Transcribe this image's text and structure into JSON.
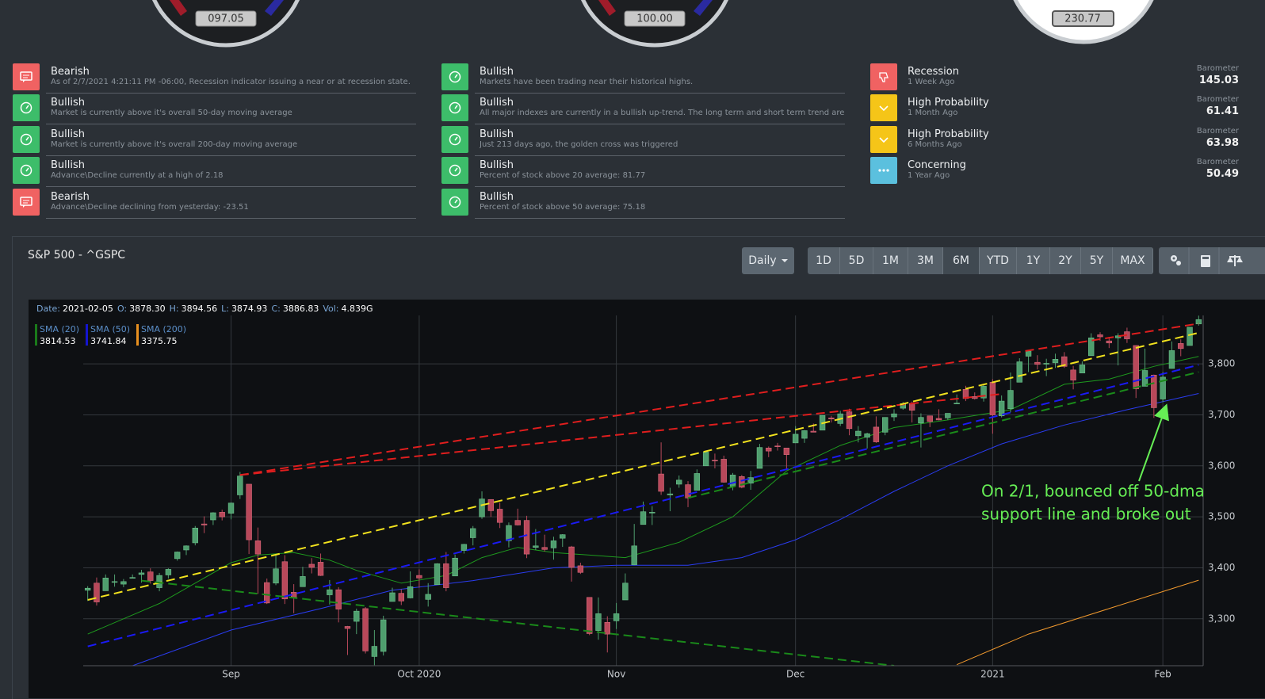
{
  "gauges": [
    {
      "value": "097.05"
    },
    {
      "value": "100.00"
    },
    {
      "value": "230.77"
    }
  ],
  "signal_columns": [
    [
      {
        "kind": "bearish",
        "title": "Bearish",
        "detail": "As of 2/7/2021 4:21:11 PM -06:00, Recession indicator issuing a near or at recession state."
      },
      {
        "kind": "bullish",
        "title": "Bullish",
        "detail": "Market is currently above it's overall 50-day moving average"
      },
      {
        "kind": "bullish",
        "title": "Bullish",
        "detail": "Market is currently above it's overall 200-day moving average"
      },
      {
        "kind": "bullish",
        "title": "Bullish",
        "detail": "Advance\\Decline currently at a high of 2.18"
      },
      {
        "kind": "bearish",
        "title": "Bearish",
        "detail": "Advance\\Decline declining from yesterday: -23.51"
      }
    ],
    [
      {
        "kind": "bullish",
        "title": "Bullish",
        "detail": "Markets have been trading near their historical highs."
      },
      {
        "kind": "bullish",
        "title": "Bullish",
        "detail": "All major indexes are currently in a bullish up-trend. The long term and short term trend are b..."
      },
      {
        "kind": "bullish",
        "title": "Bullish",
        "detail": "Just 213 days ago, the golden cross was triggered"
      },
      {
        "kind": "bullish",
        "title": "Bullish",
        "detail": "Percent of stock above 20 average: 81.77"
      },
      {
        "kind": "bullish",
        "title": "Bullish",
        "detail": "Percent of stock above 50 average: 75.18"
      }
    ]
  ],
  "barometers": {
    "label": "Barometer",
    "items": [
      {
        "kind": "recession",
        "title": "Recession",
        "detail": "1 Week Ago",
        "value": 145.03
      },
      {
        "kind": "high",
        "title": "High Probability",
        "detail": "1 Month Ago",
        "value": 61.41
      },
      {
        "kind": "high",
        "title": "High Probability",
        "detail": "6 Months Ago",
        "value": 63.98
      },
      {
        "kind": "concerning",
        "title": "Concerning",
        "detail": "1 Year Ago",
        "value": 50.49
      }
    ]
  },
  "panel": {
    "title": "S&P 500 - ^GSPC",
    "interval": "Daily",
    "ranges": [
      "1D",
      "5D",
      "1M",
      "3M",
      "6M",
      "YTD",
      "1Y",
      "2Y",
      "5Y",
      "MAX"
    ],
    "active_range": "6M"
  },
  "chart_data": {
    "type": "candlestick",
    "header": {
      "fields": [
        {
          "label": "Date:",
          "value": "2021-02-05"
        },
        {
          "label": "O:",
          "value": "3878.30"
        },
        {
          "label": "H:",
          "value": "3894.56"
        },
        {
          "label": "L:",
          "value": "3874.93"
        },
        {
          "label": "C:",
          "value": "3886.83"
        },
        {
          "label": "Vol:",
          "value": "4.839G"
        }
      ]
    },
    "up_color": "#4f9e6e",
    "down_color": "#b8485a",
    "candles": [
      [
        3356,
        3364,
        3335,
        3360
      ],
      [
        3370,
        3381,
        3326,
        3333
      ],
      [
        3355,
        3387,
        3355,
        3380
      ],
      [
        3373,
        3387,
        3363,
        3373
      ],
      [
        3368,
        3378,
        3362,
        3373
      ],
      [
        3380,
        3387,
        3379,
        3381
      ],
      [
        3387,
        3396,
        3371,
        3390
      ],
      [
        3392,
        3399,
        3369,
        3375
      ],
      [
        3361,
        3390,
        3354,
        3385
      ],
      [
        3386,
        3399,
        3379,
        3397
      ],
      [
        3418,
        3432,
        3414,
        3431
      ],
      [
        3435,
        3444,
        3425,
        3443
      ],
      [
        3449,
        3482,
        3444,
        3478
      ],
      [
        3486,
        3501,
        3468,
        3484
      ],
      [
        3494,
        3509,
        3484,
        3508
      ],
      [
        3509,
        3514,
        3493,
        3500
      ],
      [
        3507,
        3528,
        3495,
        3527
      ],
      [
        3543,
        3588,
        3535,
        3580
      ],
      [
        3564,
        3564,
        3427,
        3455
      ],
      [
        3453,
        3479,
        3349,
        3427
      ],
      [
        3371,
        3379,
        3329,
        3331
      ],
      [
        3370,
        3425,
        3366,
        3398
      ],
      [
        3412,
        3425,
        3329,
        3339
      ],
      [
        3352,
        3368,
        3311,
        3341
      ],
      [
        3363,
        3402,
        3363,
        3383
      ],
      [
        3407,
        3419,
        3389,
        3401
      ],
      [
        3411,
        3428,
        3384,
        3385
      ],
      [
        3347,
        3376,
        3328,
        3357
      ],
      [
        3357,
        3362,
        3293,
        3319
      ],
      [
        3285,
        3286,
        3229,
        3281
      ],
      [
        3295,
        3320,
        3270,
        3315
      ],
      [
        3320,
        3323,
        3232,
        3237
      ],
      [
        3226,
        3278,
        3209,
        3246
      ],
      [
        3236,
        3306,
        3228,
        3298
      ],
      [
        3334,
        3361,
        3334,
        3351
      ],
      [
        3350,
        3358,
        3327,
        3335
      ],
      [
        3341,
        3393,
        3340,
        3363
      ],
      [
        3385,
        3397,
        3361,
        3380
      ],
      [
        3338,
        3370,
        3324,
        3348
      ],
      [
        3367,
        3409,
        3367,
        3408
      ],
      [
        3408,
        3431,
        3354,
        3361
      ],
      [
        3384,
        3426,
        3384,
        3419
      ],
      [
        3434,
        3447,
        3428,
        3446
      ],
      [
        3459,
        3482,
        3444,
        3477
      ],
      [
        3500,
        3550,
        3496,
        3535
      ],
      [
        3534,
        3534,
        3500,
        3512
      ],
      [
        3515,
        3528,
        3478,
        3489
      ],
      [
        3453,
        3489,
        3440,
        3483
      ],
      [
        3493,
        3516,
        3483,
        3484
      ],
      [
        3493,
        3502,
        3419,
        3427
      ],
      [
        3440,
        3476,
        3435,
        3443
      ],
      [
        3440,
        3465,
        3432,
        3436
      ],
      [
        3439,
        3461,
        3416,
        3453
      ],
      [
        3458,
        3466,
        3441,
        3465
      ],
      [
        3441,
        3443,
        3373,
        3401
      ],
      [
        3404,
        3410,
        3388,
        3391
      ],
      [
        3342,
        3342,
        3268,
        3271
      ],
      [
        3277,
        3342,
        3259,
        3310
      ],
      [
        3293,
        3305,
        3234,
        3270
      ],
      [
        3296,
        3331,
        3280,
        3310
      ],
      [
        3337,
        3389,
        3337,
        3370
      ],
      [
        3406,
        3486,
        3405,
        3443
      ],
      [
        3485,
        3530,
        3485,
        3510
      ],
      [
        3508,
        3521,
        3484,
        3509
      ],
      [
        3584,
        3646,
        3543,
        3550
      ],
      [
        3543,
        3557,
        3511,
        3545
      ],
      [
        3564,
        3581,
        3557,
        3572
      ],
      [
        3563,
        3570,
        3519,
        3537
      ],
      [
        3552,
        3593,
        3552,
        3585
      ],
      [
        3600,
        3629,
        3600,
        3627
      ],
      [
        3611,
        3624,
        3595,
        3610
      ],
      [
        3613,
        3620,
        3567,
        3568
      ],
      [
        3560,
        3586,
        3552,
        3582
      ],
      [
        3579,
        3582,
        3556,
        3558
      ],
      [
        3566,
        3590,
        3553,
        3577
      ],
      [
        3595,
        3643,
        3595,
        3636
      ],
      [
        3635,
        3638,
        3617,
        3629
      ],
      [
        3639,
        3645,
        3630,
        3638
      ],
      [
        3635,
        3635,
        3594,
        3622
      ],
      [
        3645,
        3678,
        3645,
        3662
      ],
      [
        3654,
        3670,
        3645,
        3669
      ],
      [
        3668,
        3683,
        3666,
        3666
      ],
      [
        3670,
        3699,
        3670,
        3699
      ],
      [
        3694,
        3698,
        3685,
        3692
      ],
      [
        3683,
        3708,
        3678,
        3702
      ],
      [
        3706,
        3712,
        3660,
        3673
      ],
      [
        3659,
        3678,
        3646,
        3668
      ],
      [
        3656,
        3665,
        3634,
        3663
      ],
      [
        3676,
        3697,
        3645,
        3647
      ],
      [
        3666,
        3695,
        3660,
        3695
      ],
      [
        3696,
        3711,
        3688,
        3702
      ],
      [
        3713,
        3725,
        3710,
        3722
      ],
      [
        3722,
        3726,
        3685,
        3709
      ],
      [
        3684,
        3703,
        3636,
        3695
      ],
      [
        3698,
        3698,
        3676,
        3687
      ],
      [
        3693,
        3711,
        3689,
        3690
      ],
      [
        3694,
        3703,
        3690,
        3703
      ],
      [
        3723,
        3740,
        3723,
        3723
      ],
      [
        3750,
        3757,
        3727,
        3732
      ],
      [
        3736,
        3744,
        3730,
        3732
      ],
      [
        3733,
        3760,
        3726,
        3756
      ],
      [
        3764,
        3770,
        3663,
        3700
      ],
      [
        3698,
        3738,
        3695,
        3727
      ],
      [
        3712,
        3783,
        3705,
        3748
      ],
      [
        3764,
        3811,
        3764,
        3804
      ],
      [
        3815,
        3826,
        3784,
        3825
      ],
      [
        3803,
        3817,
        3789,
        3799
      ],
      [
        3801,
        3810,
        3776,
        3801
      ],
      [
        3802,
        3820,
        3792,
        3809
      ],
      [
        3814,
        3823,
        3792,
        3795
      ],
      [
        3788,
        3796,
        3750,
        3768
      ],
      [
        3782,
        3805,
        3782,
        3798
      ],
      [
        3816,
        3860,
        3816,
        3851
      ],
      [
        3857,
        3862,
        3845,
        3853
      ],
      [
        3845,
        3853,
        3831,
        3841
      ],
      [
        3851,
        3860,
        3797,
        3855
      ],
      [
        3863,
        3871,
        3841,
        3849
      ],
      [
        3836,
        3836,
        3733,
        3751
      ],
      [
        3756,
        3830,
        3756,
        3787
      ],
      [
        3778,
        3779,
        3694,
        3714
      ],
      [
        3731,
        3784,
        3725,
        3774
      ],
      [
        3791,
        3844,
        3791,
        3826
      ],
      [
        3840,
        3848,
        3815,
        3830
      ],
      [
        3836,
        3872,
        3836,
        3872
      ],
      [
        3878.3,
        3894.56,
        3874.93,
        3886.83
      ]
    ],
    "xlim": [
      -0.5,
      124.5
    ],
    "xticks": [
      {
        "value": 16,
        "label": "Sep"
      },
      {
        "value": 37,
        "label": "Oct 2020"
      },
      {
        "value": 59,
        "label": "Nov"
      },
      {
        "value": 79,
        "label": "Dec"
      },
      {
        "value": 101,
        "label": "2021"
      },
      {
        "value": 120,
        "label": "Feb"
      }
    ],
    "ylim": [
      3208,
      3895
    ],
    "yticks": [
      {
        "value": 3300,
        "label": "3,300"
      },
      {
        "value": 3400,
        "label": "3,400"
      },
      {
        "value": 3500,
        "label": "3,500"
      },
      {
        "value": 3600,
        "label": "3,600"
      },
      {
        "value": 3700,
        "label": "3,700"
      },
      {
        "value": 3800,
        "label": "3,800"
      }
    ],
    "grid": true,
    "lines": [
      {
        "name": "SMA (20)",
        "color": "#1e9a1e",
        "legend_color": "#1a7a1a",
        "x": [
          0,
          8,
          16,
          19,
          23,
          27,
          30,
          35,
          40,
          44,
          48,
          52,
          56,
          60,
          66,
          72,
          78,
          84,
          90,
          96,
          103,
          109,
          114,
          119,
          124
        ],
        "values": [
          3270,
          3330,
          3410,
          3425,
          3430,
          3415,
          3395,
          3370,
          3385,
          3420,
          3440,
          3430,
          3425,
          3420,
          3450,
          3500,
          3590,
          3640,
          3675,
          3690,
          3710,
          3760,
          3770,
          3795,
          3814.53
        ]
      },
      {
        "name": "SMA (50)",
        "color": "#2a3cf0",
        "legend_color": "#1515d0",
        "x": [
          5,
          16,
          26,
          34,
          43,
          52,
          59,
          67,
          73,
          79,
          84,
          90,
          96,
          102,
          109,
          116,
          124
        ],
        "values": [
          3208,
          3278,
          3320,
          3356,
          3375,
          3400,
          3405,
          3405,
          3420,
          3455,
          3495,
          3550,
          3600,
          3643,
          3680,
          3710,
          3741.84
        ]
      },
      {
        "name": "SMA (200)",
        "color": "#f29a2e",
        "legend_color": "#e8901f",
        "x": [
          97,
          105,
          114,
          124
        ],
        "values": [
          3210,
          3270,
          3320,
          3375.75
        ]
      }
    ],
    "trendlines": [
      {
        "color": "#e01e1e",
        "x": [
          17,
          124
        ],
        "values": [
          3582,
          3879
        ]
      },
      {
        "color": "#e01e1e",
        "x": [
          17,
          102
        ],
        "values": [
          3582,
          3741
        ]
      },
      {
        "color": "#f2e21e",
        "x": [
          0,
          124
        ],
        "values": [
          3337,
          3861
        ]
      },
      {
        "color": "#1a1af5",
        "x": [
          0,
          124
        ],
        "values": [
          3246,
          3798
        ]
      },
      {
        "color": "#1a8a1a",
        "x": [
          67,
          124
        ],
        "values": [
          3537,
          3784
        ]
      },
      {
        "color": "#1a8a1a",
        "x": [
          6,
          90
        ],
        "values": [
          3375,
          3208
        ]
      }
    ],
    "annotation": {
      "lines": [
        "On 2/1, bounced off 50-dma",
        "support line and broke out"
      ],
      "color": "#66ee55"
    }
  }
}
